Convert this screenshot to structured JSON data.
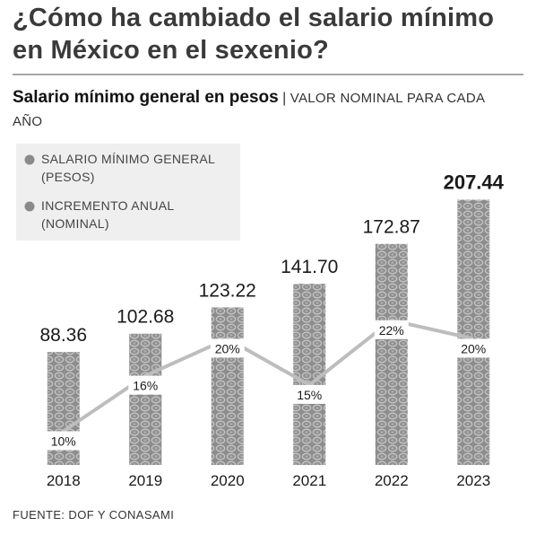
{
  "title": "¿Cómo ha cambiado el salario mínimo en México en el sexenio?",
  "subtitle": {
    "strong": "Salario mínimo general en pesos",
    "separator": "|",
    "rest": "VALOR NOMINAL PARA CADA AÑO"
  },
  "legend": [
    {
      "label_lines": [
        "SALARIO MÍNIMO GENERAL",
        "(PESOS)"
      ],
      "color": "#8a8a8a"
    },
    {
      "label_lines": [
        "INCREMENTO ANUAL",
        "(NOMINAL)"
      ],
      "color": "#8a8a8a"
    }
  ],
  "source": "FUENTE: DOF Y CONASAMI",
  "chart_data": {
    "type": "bar",
    "categories": [
      "2018",
      "2019",
      "2020",
      "2021",
      "2022",
      "2023"
    ],
    "series": [
      {
        "name": "SALARIO MÍNIMO GENERAL (PESOS)",
        "type": "bar",
        "values": [
          88.36,
          102.68,
          123.22,
          141.7,
          172.87,
          207.44
        ],
        "labels": [
          "88.36",
          "102.68",
          "123.22",
          "141.70",
          "172.87",
          "207.44"
        ]
      },
      {
        "name": "INCREMENTO ANUAL (NOMINAL)",
        "type": "line",
        "values": [
          10,
          16,
          20,
          15,
          22,
          20
        ],
        "labels": [
          "10%",
          "16%",
          "20%",
          "15%",
          "22%",
          "20%"
        ]
      }
    ],
    "ylim": [
      0,
      220
    ],
    "grid": false,
    "legend_position": "top-left",
    "colors": {
      "bar": "#8d8d8d",
      "bar_pattern": "#bcbcbc",
      "line": "#bdbdbd"
    }
  }
}
